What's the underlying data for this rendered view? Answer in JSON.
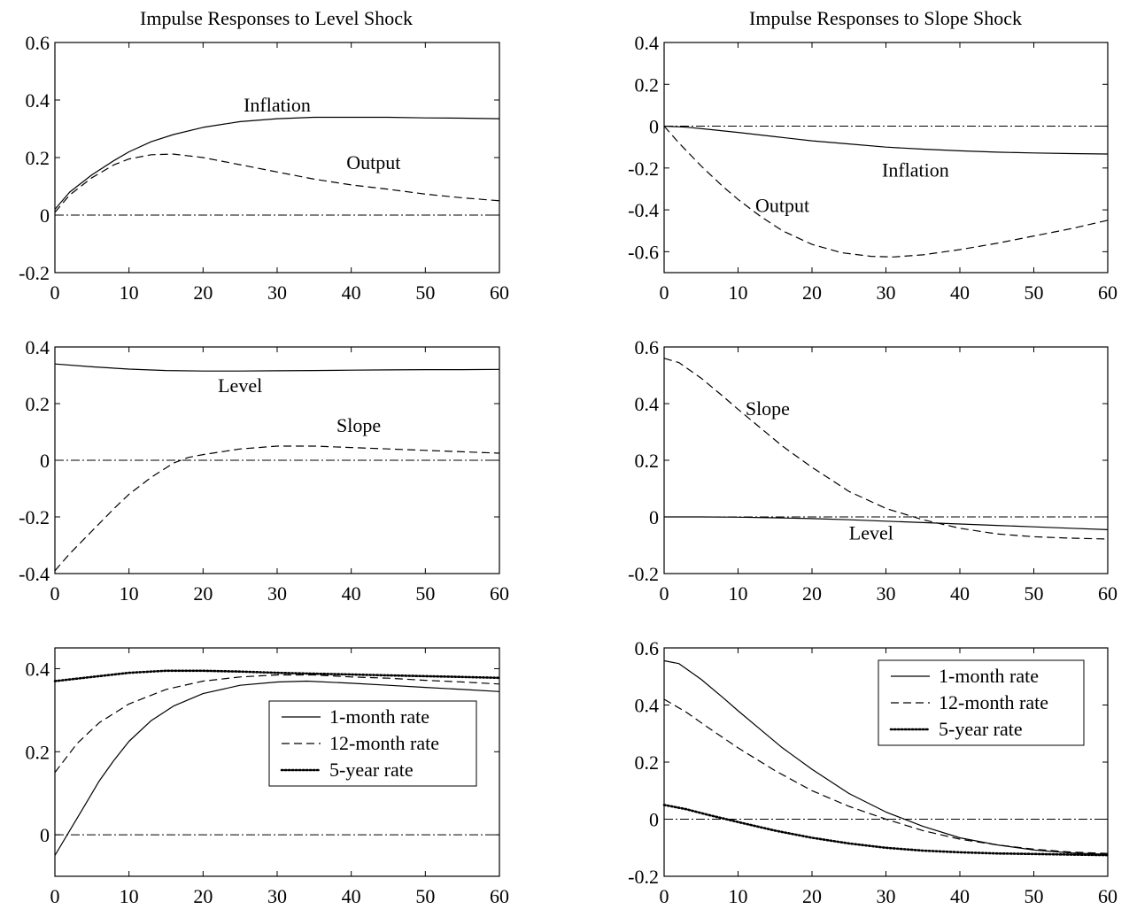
{
  "titles": {
    "left": "Impulse Responses to Level Shock",
    "right": "Impulse Responses to Slope Shock"
  },
  "chart_data": [
    {
      "id": "level-macro",
      "type": "line",
      "xlim": [
        0,
        60
      ],
      "ylim": [
        -0.2,
        0.6
      ],
      "xticks": [
        0,
        10,
        20,
        30,
        40,
        50,
        60
      ],
      "yticks": [
        -0.2,
        0,
        0.2,
        0.4,
        0.6
      ],
      "ytick_labels": [
        "-0.2",
        "0",
        "0.2",
        "0.4",
        "0.6"
      ],
      "zero_line": true,
      "series": [
        {
          "name": "Inflation",
          "style": "solid",
          "points": [
            [
              0,
              0.02
            ],
            [
              2,
              0.08
            ],
            [
              5,
              0.14
            ],
            [
              8,
              0.19
            ],
            [
              10,
              0.22
            ],
            [
              13,
              0.255
            ],
            [
              16,
              0.28
            ],
            [
              20,
              0.305
            ],
            [
              25,
              0.325
            ],
            [
              30,
              0.335
            ],
            [
              35,
              0.34
            ],
            [
              40,
              0.34
            ],
            [
              45,
              0.34
            ],
            [
              50,
              0.338
            ],
            [
              55,
              0.337
            ],
            [
              60,
              0.335
            ]
          ]
        },
        {
          "name": "Output",
          "style": "dashed",
          "points": [
            [
              0,
              0.01
            ],
            [
              2,
              0.07
            ],
            [
              5,
              0.13
            ],
            [
              8,
              0.175
            ],
            [
              10,
              0.195
            ],
            [
              13,
              0.21
            ],
            [
              16,
              0.212
            ],
            [
              20,
              0.2
            ],
            [
              25,
              0.175
            ],
            [
              30,
              0.15
            ],
            [
              35,
              0.125
            ],
            [
              40,
              0.105
            ],
            [
              45,
              0.09
            ],
            [
              50,
              0.073
            ],
            [
              55,
              0.06
            ],
            [
              60,
              0.05
            ]
          ]
        }
      ],
      "annotations": [
        {
          "text": "Inflation",
          "x": 30,
          "y": 0.36
        },
        {
          "text": "Output",
          "x": 43,
          "y": 0.16
        }
      ]
    },
    {
      "id": "slope-macro",
      "type": "line",
      "xlim": [
        0,
        60
      ],
      "ylim": [
        -0.7,
        0.4
      ],
      "xticks": [
        0,
        10,
        20,
        30,
        40,
        50,
        60
      ],
      "yticks": [
        -0.6,
        -0.4,
        -0.2,
        0,
        0.2,
        0.4
      ],
      "ytick_labels": [
        "-0.6",
        "-0.4",
        "-0.2",
        "0",
        "0.2",
        "0.4"
      ],
      "zero_line": true,
      "series": [
        {
          "name": "Inflation",
          "style": "solid",
          "points": [
            [
              0,
              0
            ],
            [
              3,
              -0.005
            ],
            [
              6,
              -0.015
            ],
            [
              10,
              -0.03
            ],
            [
              15,
              -0.05
            ],
            [
              20,
              -0.07
            ],
            [
              25,
              -0.085
            ],
            [
              30,
              -0.1
            ],
            [
              35,
              -0.11
            ],
            [
              40,
              -0.118
            ],
            [
              45,
              -0.124
            ],
            [
              50,
              -0.128
            ],
            [
              55,
              -0.131
            ],
            [
              60,
              -0.133
            ]
          ]
        },
        {
          "name": "Output",
          "style": "dashed",
          "points": [
            [
              0,
              0
            ],
            [
              2,
              -0.08
            ],
            [
              5,
              -0.19
            ],
            [
              8,
              -0.29
            ],
            [
              10,
              -0.35
            ],
            [
              13,
              -0.43
            ],
            [
              16,
              -0.5
            ],
            [
              20,
              -0.565
            ],
            [
              24,
              -0.605
            ],
            [
              28,
              -0.622
            ],
            [
              31,
              -0.625
            ],
            [
              35,
              -0.615
            ],
            [
              40,
              -0.59
            ],
            [
              45,
              -0.56
            ],
            [
              50,
              -0.525
            ],
            [
              55,
              -0.49
            ],
            [
              60,
              -0.45
            ]
          ]
        }
      ],
      "annotations": [
        {
          "text": "Inflation",
          "x": 34,
          "y": -0.24
        },
        {
          "text": "Output",
          "x": 16,
          "y": -0.41
        }
      ]
    },
    {
      "id": "level-factors",
      "type": "line",
      "xlim": [
        0,
        60
      ],
      "ylim": [
        -0.4,
        0.4
      ],
      "xticks": [
        0,
        10,
        20,
        30,
        40,
        50,
        60
      ],
      "yticks": [
        -0.4,
        -0.2,
        0,
        0.2,
        0.4
      ],
      "ytick_labels": [
        "-0.4",
        "-0.2",
        "0",
        "0.2",
        "0.4"
      ],
      "zero_line": true,
      "series": [
        {
          "name": "Level",
          "style": "solid",
          "points": [
            [
              0,
              0.34
            ],
            [
              5,
              0.33
            ],
            [
              10,
              0.322
            ],
            [
              15,
              0.317
            ],
            [
              20,
              0.315
            ],
            [
              25,
              0.315
            ],
            [
              30,
              0.316
            ],
            [
              35,
              0.317
            ],
            [
              40,
              0.318
            ],
            [
              45,
              0.319
            ],
            [
              50,
              0.32
            ],
            [
              55,
              0.32
            ],
            [
              60,
              0.321
            ]
          ]
        },
        {
          "name": "Slope",
          "style": "dashed",
          "points": [
            [
              0,
              -0.39
            ],
            [
              2,
              -0.33
            ],
            [
              5,
              -0.25
            ],
            [
              8,
              -0.17
            ],
            [
              10,
              -0.12
            ],
            [
              13,
              -0.06
            ],
            [
              16,
              -0.01
            ],
            [
              18,
              0.01
            ],
            [
              20,
              0.02
            ],
            [
              25,
              0.04
            ],
            [
              30,
              0.05
            ],
            [
              35,
              0.05
            ],
            [
              40,
              0.045
            ],
            [
              45,
              0.04
            ],
            [
              50,
              0.035
            ],
            [
              55,
              0.03
            ],
            [
              60,
              0.025
            ]
          ]
        }
      ],
      "annotations": [
        {
          "text": "Level",
          "x": 25,
          "y": 0.24
        },
        {
          "text": "Slope",
          "x": 41,
          "y": 0.1
        }
      ]
    },
    {
      "id": "slope-factors",
      "type": "line",
      "xlim": [
        0,
        60
      ],
      "ylim": [
        -0.2,
        0.6
      ],
      "xticks": [
        0,
        10,
        20,
        30,
        40,
        50,
        60
      ],
      "yticks": [
        -0.2,
        0,
        0.2,
        0.4,
        0.6
      ],
      "ytick_labels": [
        "-0.2",
        "0",
        "0.2",
        "0.4",
        "0.6"
      ],
      "zero_line": true,
      "series": [
        {
          "name": "Slope",
          "style": "dashed",
          "points": [
            [
              0,
              0.56
            ],
            [
              2,
              0.545
            ],
            [
              5,
              0.49
            ],
            [
              8,
              0.425
            ],
            [
              10,
              0.38
            ],
            [
              13,
              0.315
            ],
            [
              16,
              0.25
            ],
            [
              20,
              0.175
            ],
            [
              25,
              0.09
            ],
            [
              30,
              0.03
            ],
            [
              35,
              -0.01
            ],
            [
              40,
              -0.04
            ],
            [
              45,
              -0.06
            ],
            [
              50,
              -0.07
            ],
            [
              55,
              -0.075
            ],
            [
              60,
              -0.078
            ]
          ]
        },
        {
          "name": "Level",
          "style": "solid",
          "points": [
            [
              0,
              0
            ],
            [
              5,
              0
            ],
            [
              10,
              -0.001
            ],
            [
              15,
              -0.003
            ],
            [
              20,
              -0.006
            ],
            [
              25,
              -0.01
            ],
            [
              30,
              -0.015
            ],
            [
              35,
              -0.02
            ],
            [
              40,
              -0.025
            ],
            [
              45,
              -0.03
            ],
            [
              50,
              -0.035
            ],
            [
              55,
              -0.04
            ],
            [
              60,
              -0.045
            ]
          ]
        }
      ],
      "annotations": [
        {
          "text": "Slope",
          "x": 14,
          "y": 0.36
        },
        {
          "text": "Level",
          "x": 28,
          "y": -0.08
        }
      ]
    },
    {
      "id": "level-yields",
      "type": "line",
      "xlim": [
        0,
        60
      ],
      "ylim": [
        -0.1,
        0.45
      ],
      "xticks": [
        0,
        10,
        20,
        30,
        40,
        50,
        60
      ],
      "yticks": [
        0,
        0.2,
        0.4
      ],
      "ytick_labels": [
        "0",
        "0.2",
        "0.4"
      ],
      "zero_line": true,
      "legend": "center-right",
      "series": [
        {
          "name": "1-month rate",
          "style": "solid",
          "points": [
            [
              0,
              -0.05
            ],
            [
              2,
              0.01
            ],
            [
              4,
              0.07
            ],
            [
              6,
              0.13
            ],
            [
              8,
              0.18
            ],
            [
              10,
              0.225
            ],
            [
              13,
              0.275
            ],
            [
              16,
              0.31
            ],
            [
              20,
              0.34
            ],
            [
              25,
              0.36
            ],
            [
              30,
              0.368
            ],
            [
              34,
              0.37
            ],
            [
              40,
              0.365
            ],
            [
              45,
              0.36
            ],
            [
              50,
              0.355
            ],
            [
              55,
              0.35
            ],
            [
              60,
              0.345
            ]
          ]
        },
        {
          "name": "12-month rate",
          "style": "dashed",
          "points": [
            [
              0,
              0.15
            ],
            [
              3,
              0.22
            ],
            [
              6,
              0.27
            ],
            [
              10,
              0.315
            ],
            [
              15,
              0.35
            ],
            [
              20,
              0.37
            ],
            [
              25,
              0.38
            ],
            [
              30,
              0.385
            ],
            [
              35,
              0.385
            ],
            [
              40,
              0.38
            ],
            [
              45,
              0.377
            ],
            [
              50,
              0.372
            ],
            [
              55,
              0.368
            ],
            [
              60,
              0.363
            ]
          ]
        },
        {
          "name": "5-year rate",
          "style": "dotted",
          "points": [
            [
              0,
              0.37
            ],
            [
              5,
              0.38
            ],
            [
              10,
              0.39
            ],
            [
              15,
              0.395
            ],
            [
              20,
              0.395
            ],
            [
              25,
              0.393
            ],
            [
              30,
              0.39
            ],
            [
              35,
              0.388
            ],
            [
              40,
              0.386
            ],
            [
              45,
              0.384
            ],
            [
              50,
              0.382
            ],
            [
              55,
              0.38
            ],
            [
              60,
              0.378
            ]
          ]
        }
      ]
    },
    {
      "id": "slope-yields",
      "type": "line",
      "xlim": [
        0,
        60
      ],
      "ylim": [
        -0.2,
        0.6
      ],
      "xticks": [
        0,
        10,
        20,
        30,
        40,
        50,
        60
      ],
      "yticks": [
        -0.2,
        0,
        0.2,
        0.4,
        0.6
      ],
      "ytick_labels": [
        "-0.2",
        "0",
        "0.2",
        "0.4",
        "0.6"
      ],
      "zero_line": true,
      "legend": "top-right",
      "series": [
        {
          "name": "1-month rate",
          "style": "solid",
          "points": [
            [
              0,
              0.555
            ],
            [
              2,
              0.545
            ],
            [
              5,
              0.49
            ],
            [
              8,
              0.425
            ],
            [
              10,
              0.38
            ],
            [
              13,
              0.315
            ],
            [
              16,
              0.25
            ],
            [
              20,
              0.175
            ],
            [
              25,
              0.09
            ],
            [
              30,
              0.025
            ],
            [
              35,
              -0.025
            ],
            [
              40,
              -0.065
            ],
            [
              45,
              -0.09
            ],
            [
              50,
              -0.108
            ],
            [
              55,
              -0.118
            ],
            [
              60,
              -0.123
            ]
          ]
        },
        {
          "name": "12-month rate",
          "style": "dashed",
          "points": [
            [
              0,
              0.42
            ],
            [
              3,
              0.375
            ],
            [
              6,
              0.32
            ],
            [
              10,
              0.25
            ],
            [
              15,
              0.17
            ],
            [
              20,
              0.1
            ],
            [
              25,
              0.045
            ],
            [
              30,
              0.0
            ],
            [
              35,
              -0.04
            ],
            [
              40,
              -0.07
            ],
            [
              45,
              -0.09
            ],
            [
              50,
              -0.105
            ],
            [
              55,
              -0.115
            ],
            [
              60,
              -0.12
            ]
          ]
        },
        {
          "name": "5-year rate",
          "style": "dotted",
          "points": [
            [
              0,
              0.05
            ],
            [
              3,
              0.035
            ],
            [
              6,
              0.015
            ],
            [
              10,
              -0.01
            ],
            [
              15,
              -0.04
            ],
            [
              20,
              -0.065
            ],
            [
              25,
              -0.085
            ],
            [
              30,
              -0.1
            ],
            [
              35,
              -0.11
            ],
            [
              40,
              -0.116
            ],
            [
              45,
              -0.12
            ],
            [
              50,
              -0.122
            ],
            [
              55,
              -0.124
            ],
            [
              60,
              -0.126
            ]
          ]
        }
      ]
    }
  ]
}
